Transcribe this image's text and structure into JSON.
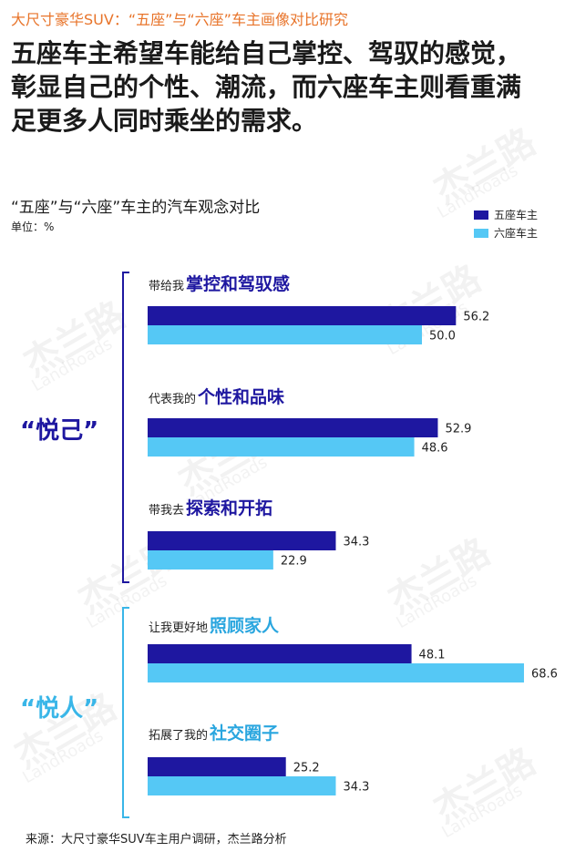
{
  "report_title": "大尺寸豪华SUV：“五座”与“六座”车主画像对比研究",
  "headline": "五座车主希望车能给自己掌控、驾驭的感觉，彰显自己的个性、潮流，而六座车主则看重满足更多人同时乘坐的需求。",
  "source_note": "来源：大尺寸豪华SUV车主用户调研，杰兰路分析",
  "watermark": {
    "brand": "杰兰路",
    "brand_en": "LandRoads"
  },
  "groups": [
    {
      "label": "“悦己”",
      "color": "#1e17a0"
    },
    {
      "label": "“悦人”",
      "color": "#39b6e8"
    }
  ],
  "categories": [
    {
      "prefix": "带给我",
      "emphasis": "掌控和驾驭感",
      "group": 0
    },
    {
      "prefix": "代表我的",
      "emphasis": "个性和品味",
      "group": 0
    },
    {
      "prefix": "带我去",
      "emphasis": "探索和开拓",
      "group": 0
    },
    {
      "prefix": "让我更好地",
      "emphasis": "照顾家人",
      "group": 1
    },
    {
      "prefix": "拓展了我的",
      "emphasis": "社交圈子",
      "group": 1
    }
  ],
  "chart_data": {
    "type": "bar",
    "orientation": "horizontal",
    "title": "“五座”与“六座”车主的汽车观念对比",
    "unit": "单位：%",
    "categories": [
      "带给我掌控和驾驭感",
      "代表我的个性和品味",
      "带我去探索和开拓",
      "让我更好地照顾家人",
      "拓展了我的社交圈子"
    ],
    "series": [
      {
        "name": "五座车主",
        "color": "#1e17a0",
        "values": [
          56.2,
          52.9,
          34.3,
          48.1,
          25.2
        ]
      },
      {
        "name": "六座车主",
        "color": "#55c8f5",
        "values": [
          50.0,
          48.6,
          22.9,
          68.6,
          34.3
        ]
      }
    ],
    "xlim": [
      0,
      75
    ],
    "grid": false,
    "legend_position": "top-right"
  }
}
